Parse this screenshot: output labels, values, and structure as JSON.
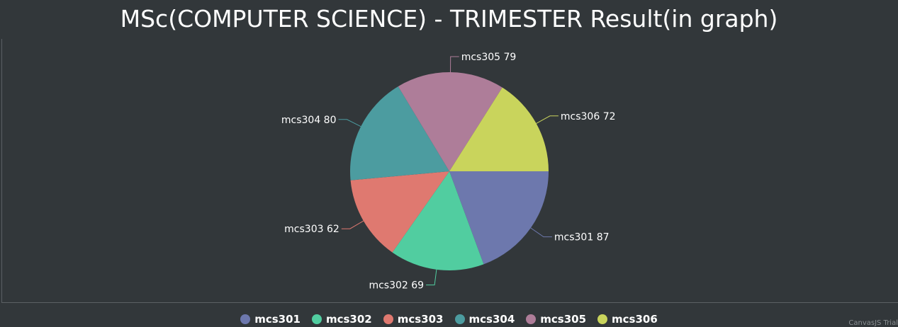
{
  "chart_data": {
    "type": "pie",
    "title": "MSc(COMPUTER SCIENCE) - TRIMESTER Result(in graph)",
    "slices": [
      {
        "name": "mcs301",
        "value": 87,
        "label": "mcs301 87",
        "color": "#6d78ad"
      },
      {
        "name": "mcs302",
        "value": 69,
        "label": "mcs302 69",
        "color": "#51cda0"
      },
      {
        "name": "mcs303",
        "value": 62,
        "label": "mcs303 62",
        "color": "#df7970"
      },
      {
        "name": "mcs304",
        "value": 80,
        "label": "mcs304 80",
        "color": "#4c9ca0"
      },
      {
        "name": "mcs305",
        "value": 79,
        "label": "mcs305 79",
        "color": "#ae7d99"
      },
      {
        "name": "mcs306",
        "value": 72,
        "label": "mcs306 72",
        "color": "#c9d45c"
      }
    ],
    "start_angle_deg": 0,
    "legend_position": "bottom-center"
  },
  "credit": "CanvasJS Trial"
}
